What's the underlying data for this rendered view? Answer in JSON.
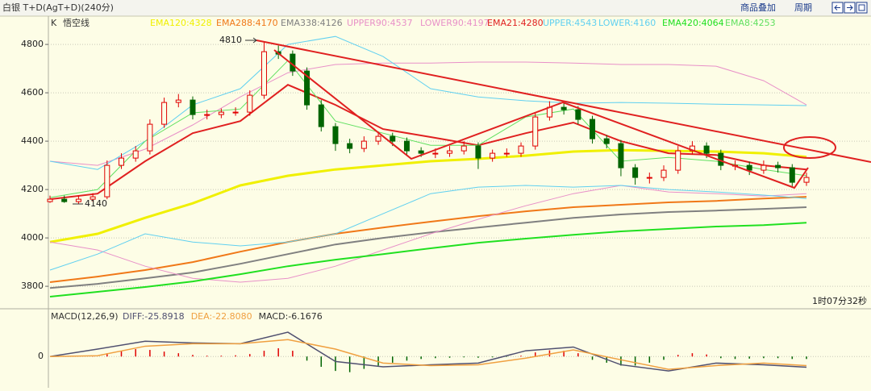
{
  "header": {
    "title": "白银 T+D(AgT+D)(240分)",
    "overlay_button": "商品叠加",
    "period_button": "周期"
  },
  "chart_data": {
    "type": "candlestick",
    "label": "K",
    "indicator": "悟空线",
    "x": [
      0,
      3,
      6,
      9,
      12,
      15,
      18,
      21,
      24,
      27,
      30,
      33,
      36,
      39,
      42,
      45,
      48,
      51,
      54,
      57,
      60,
      63,
      66,
      69,
      72,
      75,
      78,
      81,
      84,
      87,
      90,
      93,
      96,
      99,
      102,
      105,
      108,
      111,
      114,
      117,
      120,
      123,
      126,
      129,
      132,
      135,
      138,
      141,
      144,
      147,
      150,
      153,
      156,
      159
    ],
    "open": [
      4150,
      4160,
      4150,
      4160,
      4170,
      4300,
      4330,
      4360,
      4470,
      4560,
      4570,
      4510,
      4510,
      4520,
      4520,
      4590,
      4770,
      4760,
      4690,
      4550,
      4460,
      4390,
      4370,
      4400,
      4420,
      4400,
      4360,
      4350,
      4350,
      4360,
      4380,
      4330,
      4350,
      4350,
      4380,
      4500,
      4540,
      4530,
      4490,
      4410,
      4390,
      4290,
      4250,
      4250,
      4280,
      4360,
      4380,
      4350,
      4300,
      4300,
      4280,
      4300,
      4290,
      4230
    ],
    "high": [
      4175,
      4175,
      4175,
      4185,
      4320,
      4350,
      4380,
      4490,
      4580,
      4595,
      4585,
      4530,
      4535,
      4540,
      4610,
      4810,
      4795,
      4775,
      4705,
      4570,
      4475,
      4410,
      4420,
      4440,
      4435,
      4415,
      4375,
      4370,
      4380,
      4400,
      4395,
      4365,
      4370,
      4395,
      4520,
      4565,
      4560,
      4545,
      4505,
      4425,
      4405,
      4305,
      4270,
      4300,
      4380,
      4400,
      4395,
      4365,
      4320,
      4315,
      4320,
      4315,
      4305,
      4270
    ],
    "low": [
      4145,
      4145,
      4140,
      4150,
      4160,
      4285,
      4315,
      4345,
      4455,
      4540,
      4490,
      4490,
      4495,
      4505,
      4505,
      4575,
      4740,
      4670,
      4530,
      4440,
      4360,
      4350,
      4355,
      4385,
      4380,
      4340,
      4335,
      4330,
      4335,
      4345,
      4285,
      4315,
      4335,
      4335,
      4365,
      4485,
      4510,
      4470,
      4390,
      4370,
      4255,
      4220,
      4225,
      4235,
      4265,
      4345,
      4330,
      4280,
      4280,
      4260,
      4265,
      4270,
      4210,
      4215
    ],
    "close": [
      4160,
      4150,
      4160,
      4170,
      4300,
      4330,
      4360,
      4470,
      4560,
      4570,
      4510,
      4510,
      4520,
      4520,
      4590,
      4770,
      4760,
      4690,
      4550,
      4460,
      4390,
      4370,
      4400,
      4420,
      4400,
      4360,
      4350,
      4350,
      4360,
      4380,
      4330,
      4350,
      4350,
      4380,
      4500,
      4540,
      4530,
      4490,
      4410,
      4390,
      4290,
      4250,
      4250,
      4280,
      4360,
      4380,
      4350,
      4300,
      4300,
      4280,
      4300,
      4290,
      4230,
      4250
    ],
    "up_color": "#e00000",
    "down_color": "#006400",
    "xlim": [
      0,
      159
    ],
    "ylim": [
      3707,
      4917
    ],
    "yticks": [
      3800,
      4000,
      4200,
      4400,
      4600,
      4800
    ],
    "grid": true,
    "overlay_x": [
      0,
      10,
      20,
      30,
      40,
      50,
      60,
      70,
      80,
      90,
      100,
      110,
      120,
      130,
      140,
      150,
      159
    ],
    "overlays": [
      {
        "name": "EMA120:4328",
        "color": "#f0f000",
        "width": 3,
        "values": [
          3983,
          4017,
          4083,
          4143,
          4217,
          4257,
          4283,
          4300,
          4317,
          4327,
          4340,
          4357,
          4363,
          4360,
          4357,
          4350,
          4335
        ]
      },
      {
        "name": "EMA288:4170",
        "color": "#f07818",
        "width": 2,
        "values": [
          3817,
          3840,
          3867,
          3900,
          3943,
          3983,
          4017,
          4043,
          4067,
          4090,
          4110,
          4127,
          4137,
          4147,
          4153,
          4163,
          4170
        ]
      },
      {
        "name": "EMA338:4126",
        "color": "#808080",
        "width": 2,
        "values": [
          3793,
          3810,
          3833,
          3857,
          3893,
          3933,
          3973,
          4000,
          4023,
          4043,
          4063,
          4083,
          4097,
          4107,
          4113,
          4120,
          4127
        ]
      },
      {
        "name": "UPPER90:4537",
        "color": "#e890c8",
        "width": 1,
        "values": [
          4317,
          4300,
          4367,
          4467,
          4583,
          4683,
          4717,
          4723,
          4723,
          4727,
          4727,
          4723,
          4717,
          4717,
          4710,
          4650,
          4550
        ]
      },
      {
        "name": "LOWER90:4197",
        "color": "#e890c8",
        "width": 1,
        "values": [
          3983,
          3950,
          3883,
          3833,
          3817,
          3833,
          3883,
          3950,
          4017,
          4077,
          4133,
          4183,
          4217,
          4190,
          4183,
          4173,
          4183
        ]
      },
      {
        "name": "EMA21:4280",
        "color": "#e02020",
        "width": 2,
        "values": [
          4160,
          4183,
          4317,
          4433,
          4483,
          4633,
          4550,
          4450,
          4417,
          4383,
          4433,
          4477,
          4400,
          4350,
          4343,
          4300,
          4283
        ]
      },
      {
        "name": "UPPER:4543",
        "color": "#60d0f0",
        "width": 1,
        "values": [
          4317,
          4283,
          4400,
          4550,
          4617,
          4800,
          4833,
          4750,
          4617,
          4583,
          4567,
          4557,
          4560,
          4557,
          4553,
          4550,
          4547
        ]
      },
      {
        "name": "LOWER:4160",
        "color": "#60d0f0",
        "width": 1,
        "values": [
          3867,
          3933,
          4017,
          3983,
          3967,
          3983,
          4017,
          4100,
          4183,
          4210,
          4217,
          4210,
          4217,
          4200,
          4190,
          4177,
          4163
        ]
      },
      {
        "name": "EMA420:4064",
        "color": "#20e020",
        "width": 2,
        "values": [
          3757,
          3777,
          3797,
          3820,
          3850,
          3883,
          3910,
          3933,
          3957,
          3980,
          3997,
          4013,
          4027,
          4037,
          4047,
          4053,
          4063
        ]
      },
      {
        "name": "EMA8:4253",
        "color": "#60e060",
        "width": 1,
        "values": [
          4167,
          4200,
          4400,
          4517,
          4533,
          4733,
          4483,
          4433,
          4383,
          4383,
          4500,
          4533,
          4317,
          4333,
          4317,
          4283,
          4257
        ]
      }
    ],
    "annotations": [
      "4810",
      "4140"
    ],
    "timer": "1时07分32秒",
    "macd": {
      "title": "MACD(12,26,9)",
      "ylim": [
        -70,
        110
      ],
      "yticks": [
        0
      ],
      "series": [
        {
          "name": "DIFF:-25.8918",
          "color": "#505070",
          "values": [
            0,
            18,
            37,
            33,
            31,
            59,
            -12,
            -25,
            -20,
            -16,
            14,
            23,
            -20,
            -35,
            -16,
            -20,
            -26
          ]
        },
        {
          "name": "DEA:-22.8080",
          "color": "#f0a040",
          "values": [
            0,
            2,
            25,
            31,
            31,
            41,
            18,
            -16,
            -22,
            -20,
            -4,
            16,
            -8,
            -31,
            -22,
            -16,
            -22
          ]
        }
      ],
      "histogram": {
        "name": "MACD:-6.1676",
        "color": "#303030",
        "values": [
          0,
          0,
          0,
          1,
          8,
          14,
          18,
          16,
          12,
          8,
          4,
          2,
          2,
          3,
          6,
          14,
          20,
          14,
          -10,
          -25,
          -35,
          -38,
          -30,
          -22,
          -15,
          -10,
          -6,
          -4,
          -3,
          -2,
          -3,
          -2,
          -1,
          2,
          10,
          15,
          14,
          8,
          -8,
          -15,
          -22,
          -22,
          -15,
          -8,
          4,
          8,
          5,
          -4,
          -6,
          -5,
          -4,
          -4,
          -6,
          -6
        ]
      }
    }
  }
}
